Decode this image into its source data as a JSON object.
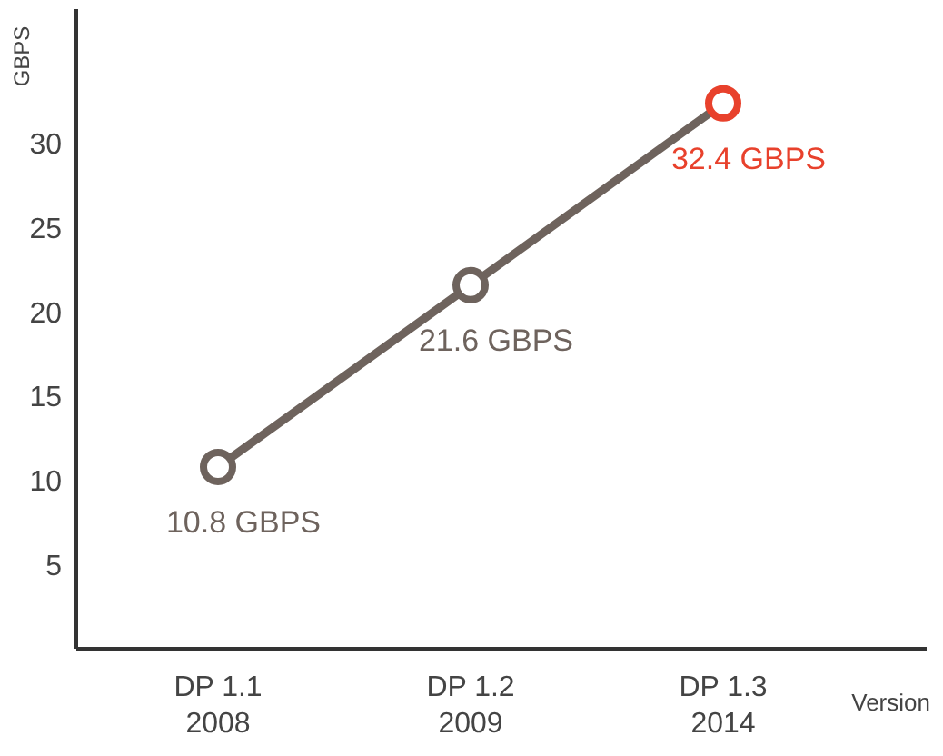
{
  "chart_data": {
    "type": "line",
    "ylabel": "GBPS",
    "xlabel": "Version",
    "categories": [
      "DP 1.1\n2008",
      "DP 1.2\n2009",
      "DP 1.3\n2014"
    ],
    "series": [
      {
        "color": "#6e635d",
        "colors": [
          "#6e635d",
          "#6e635d",
          "#e8412c"
        ],
        "values": [
          10.8,
          21.6,
          32.4
        ]
      }
    ],
    "value_labels": [
      "10.8 GBPS",
      "21.6 GBPS",
      "32.4 GBPS"
    ],
    "ylim": [
      0,
      38
    ],
    "yticks": [
      5,
      10,
      15,
      20,
      25,
      30
    ],
    "grid": false,
    "marker": "circle",
    "line_style": "solid"
  }
}
